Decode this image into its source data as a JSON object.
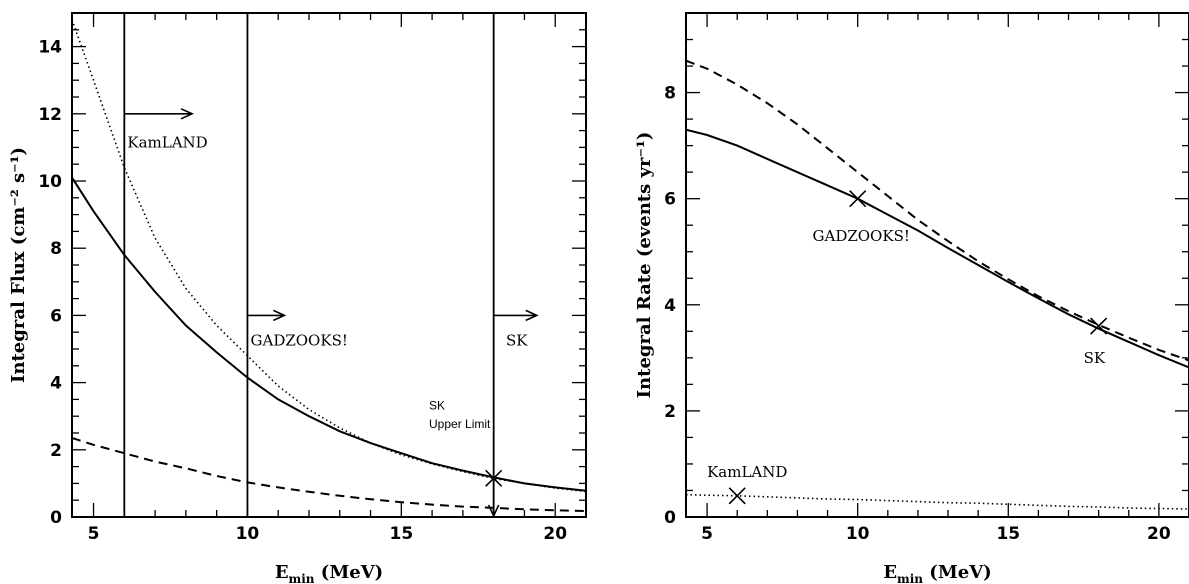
{
  "chart_data": [
    {
      "type": "line",
      "xlabel": "E",
      "xlabel_sub": "min",
      "xlabel_unit": "(MeV)",
      "ylabel": "Integral Flux (cm⁻² s⁻¹)",
      "xlim": [
        4.3,
        21
      ],
      "ylim": [
        0,
        15
      ],
      "xticks": [
        5,
        10,
        15,
        20
      ],
      "yticks": [
        0,
        2,
        4,
        6,
        8,
        10,
        12,
        14
      ],
      "grid": false,
      "series": [
        {
          "style": "solid",
          "x": [
            4.3,
            5,
            6,
            7,
            8,
            9,
            10,
            11,
            12,
            13,
            14,
            15,
            16,
            17,
            18,
            19,
            20,
            21
          ],
          "y": [
            10.1,
            9.1,
            7.8,
            6.7,
            5.7,
            4.9,
            4.15,
            3.5,
            3.0,
            2.55,
            2.2,
            1.9,
            1.6,
            1.38,
            1.18,
            1.0,
            0.88,
            0.78
          ]
        },
        {
          "style": "dotted",
          "x": [
            4.3,
            5,
            6,
            7,
            8,
            9,
            10,
            11,
            12,
            13,
            14,
            15,
            16,
            17,
            18,
            19,
            20,
            21
          ],
          "y": [
            14.8,
            13.0,
            10.4,
            8.3,
            6.8,
            5.7,
            4.8,
            3.9,
            3.2,
            2.65,
            2.2,
            1.85,
            1.58,
            1.35,
            1.15,
            1.0,
            0.86,
            0.76
          ]
        },
        {
          "style": "dashed",
          "x": [
            4.3,
            5,
            6,
            7,
            8,
            9,
            10,
            11,
            12,
            13,
            14,
            15,
            16,
            17,
            18,
            19,
            20,
            21
          ],
          "y": [
            2.35,
            2.15,
            1.9,
            1.65,
            1.45,
            1.22,
            1.03,
            0.88,
            0.75,
            0.63,
            0.53,
            0.44,
            0.37,
            0.31,
            0.27,
            0.23,
            0.2,
            0.18
          ]
        }
      ],
      "vlines": [
        6,
        10,
        18
      ],
      "arrows": [
        {
          "x0": 6,
          "x1": 8.2,
          "y": 12
        },
        {
          "x0": 10,
          "x1": 11.2,
          "y": 6
        },
        {
          "x0": 18,
          "x1": 19.4,
          "y": 6
        }
      ],
      "down_arrow": {
        "x": 18,
        "y0": 1.15,
        "y1": 0
      },
      "markers": [
        {
          "x": 18,
          "y": 1.15
        }
      ],
      "annotations": [
        {
          "text": "KamLAND",
          "x": 6.1,
          "y": 11.0,
          "style": "serif"
        },
        {
          "text": "GADZOOKS!",
          "x": 10.1,
          "y": 5.1,
          "style": "serif"
        },
        {
          "text": "SK",
          "x": 18.4,
          "y": 5.1,
          "style": "serif"
        },
        {
          "text": "SK",
          "x": 15.9,
          "y": 3.2,
          "style": "sans"
        },
        {
          "text": "Upper Limit",
          "x": 15.9,
          "y": 2.65,
          "style": "sans"
        }
      ]
    },
    {
      "type": "line",
      "xlabel": "E",
      "xlabel_sub": "min",
      "xlabel_unit": "(MeV)",
      "ylabel": "Integral Rate (events yr⁻¹)",
      "xlim": [
        4.3,
        21
      ],
      "ylim": [
        0,
        9.5
      ],
      "xticks": [
        5,
        10,
        15,
        20
      ],
      "yticks": [
        0,
        2,
        4,
        6,
        8
      ],
      "grid": false,
      "series": [
        {
          "style": "solid",
          "x": [
            4.3,
            5,
            6,
            7,
            8,
            9,
            10,
            11,
            12,
            13,
            14,
            15,
            16,
            17,
            18,
            19,
            20,
            21
          ],
          "y": [
            7.3,
            7.2,
            7.0,
            6.75,
            6.5,
            6.25,
            6.0,
            5.7,
            5.4,
            5.07,
            4.75,
            4.43,
            4.12,
            3.82,
            3.55,
            3.3,
            3.05,
            2.82
          ]
        },
        {
          "style": "dashed",
          "x": [
            4.3,
            5,
            6,
            7,
            8,
            9,
            10,
            11,
            12,
            13,
            14,
            15,
            16,
            17,
            18,
            19,
            20,
            21
          ],
          "y": [
            8.6,
            8.45,
            8.15,
            7.8,
            7.4,
            6.95,
            6.5,
            6.05,
            5.6,
            5.2,
            4.82,
            4.48,
            4.16,
            3.88,
            3.62,
            3.38,
            3.15,
            2.95
          ]
        },
        {
          "style": "dotted",
          "x": [
            4.3,
            5,
            6,
            7,
            8,
            9,
            10,
            11,
            12,
            13,
            14,
            15,
            16,
            17,
            18,
            19,
            20,
            21
          ],
          "y": [
            0.42,
            0.41,
            0.4,
            0.38,
            0.36,
            0.34,
            0.33,
            0.31,
            0.29,
            0.27,
            0.26,
            0.24,
            0.22,
            0.2,
            0.19,
            0.17,
            0.16,
            0.15
          ]
        }
      ],
      "markers": [
        {
          "x": 6,
          "y": 0.4
        },
        {
          "x": 10,
          "y": 6.0
        },
        {
          "x": 18,
          "y": 3.6
        }
      ],
      "annotations": [
        {
          "text": "KamLAND",
          "x": 5.0,
          "y": 0.75,
          "style": "serif"
        },
        {
          "text": "GADZOOKS!",
          "x": 8.5,
          "y": 5.2,
          "style": "serif"
        },
        {
          "text": "SK",
          "x": 17.5,
          "y": 2.9,
          "style": "serif"
        }
      ]
    }
  ]
}
